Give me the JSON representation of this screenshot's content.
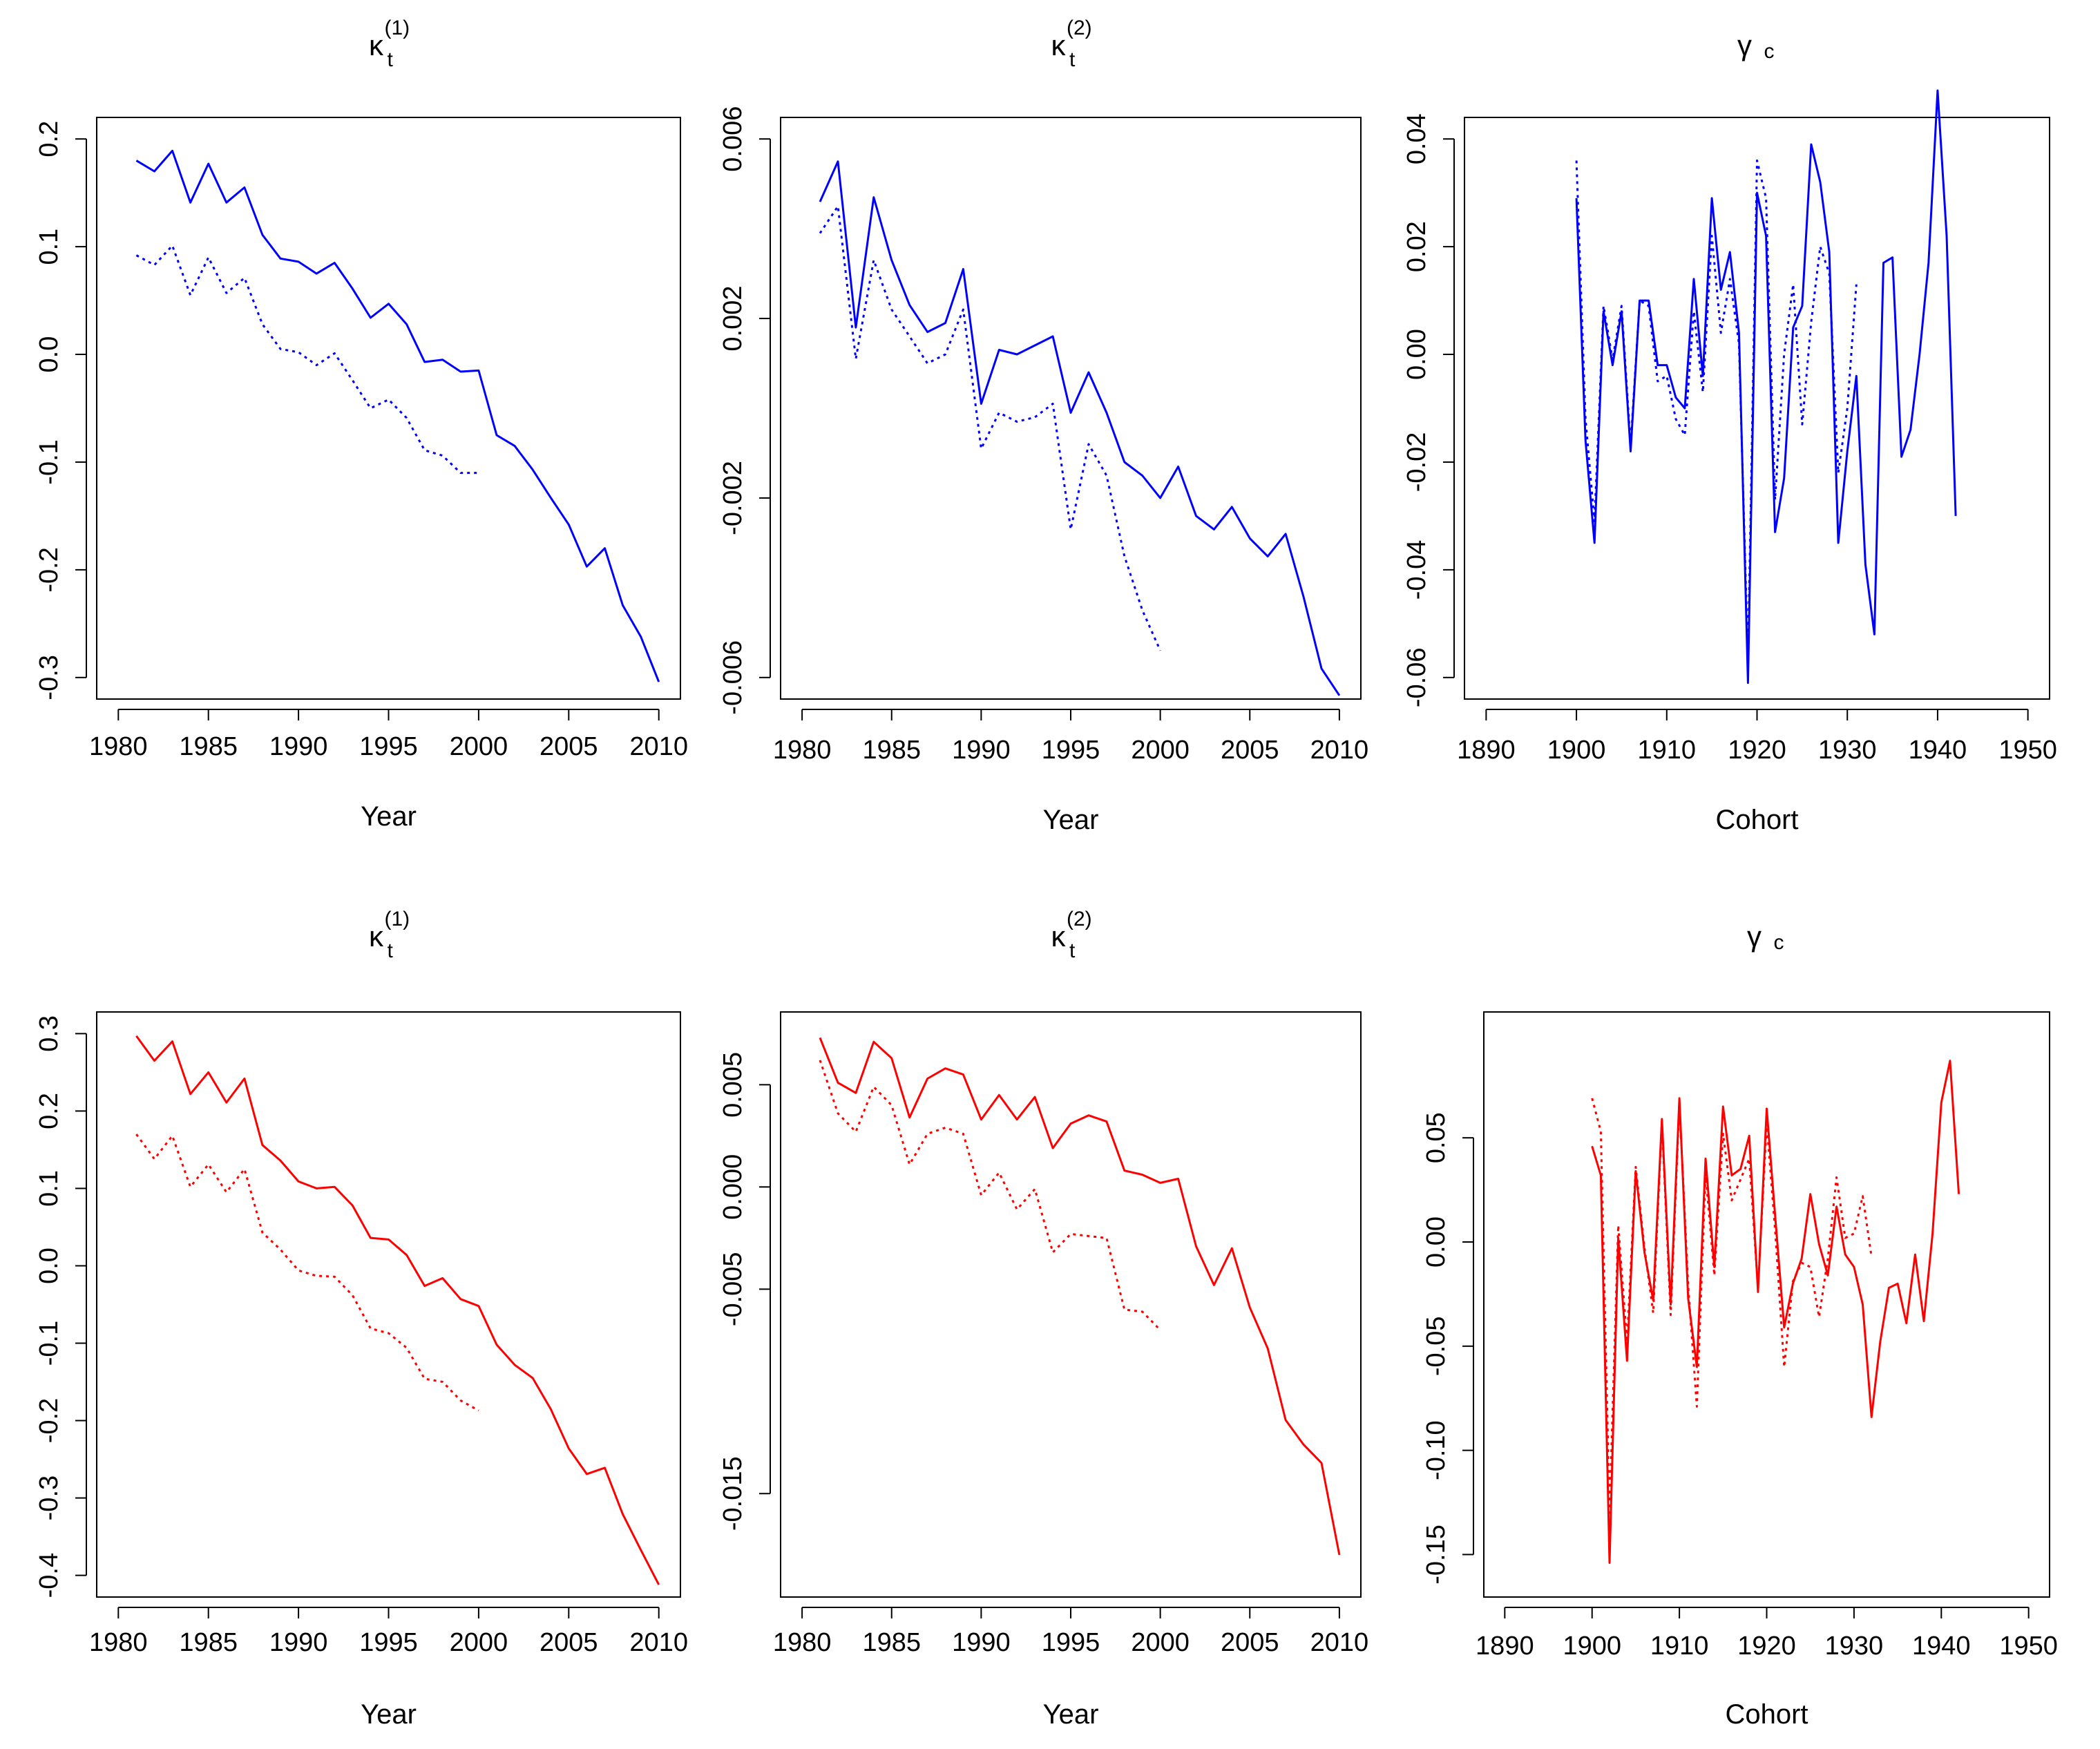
{
  "chart_data": [
    {
      "id": "top-kappa1",
      "type": "line",
      "title": {
        "base": "κ",
        "sub": "t",
        "sup": "(1)"
      },
      "xlabel": "Year",
      "xlim": [
        1980,
        2010
      ],
      "ylim": [
        -0.3,
        0.2
      ],
      "xticks": [
        "1980",
        "1985",
        "1990",
        "1995",
        "2000",
        "2005",
        "2010"
      ],
      "yticks": [
        "-0.3",
        "-0.2",
        "-0.1",
        "0.0",
        "0.1",
        "0.2"
      ],
      "color": "#0000ff",
      "series": [
        {
          "name": "solid",
          "style": "solid",
          "x_start": 1981,
          "values": [
            0.18,
            0.17,
            0.189,
            0.141,
            0.177,
            0.141,
            0.155,
            0.111,
            0.089,
            0.086,
            0.075,
            0.085,
            0.061,
            0.034,
            0.047,
            0.028,
            -0.007,
            -0.005,
            -0.016,
            -0.015,
            -0.075,
            -0.085,
            -0.107,
            -0.133,
            -0.158,
            -0.197,
            -0.18,
            -0.233,
            -0.262,
            -0.304
          ]
        },
        {
          "name": "dotted",
          "style": "dotted",
          "x_start": 1981,
          "values": [
            0.092,
            0.083,
            0.101,
            0.055,
            0.09,
            0.057,
            0.071,
            0.028,
            0.005,
            0.002,
            -0.01,
            0.001,
            -0.024,
            -0.05,
            -0.042,
            -0.059,
            -0.089,
            -0.094,
            -0.11,
            -0.11
          ]
        }
      ]
    },
    {
      "id": "top-kappa2",
      "type": "line",
      "title": {
        "base": "κ",
        "sub": "t",
        "sup": "(2)"
      },
      "xlabel": "Year",
      "xlim": [
        1980,
        2010
      ],
      "ylim": [
        -0.006,
        0.006
      ],
      "xticks": [
        "1980",
        "1985",
        "1990",
        "1995",
        "2000",
        "2005",
        "2010"
      ],
      "ytick_values": [
        -0.006,
        -0.002,
        0.002,
        0.006
      ],
      "yticks": [
        "-0.006",
        "-0.002",
        "0.002",
        "0.006"
      ],
      "color": "#0000ff",
      "series": [
        {
          "name": "solid",
          "style": "solid",
          "x_start": 1981,
          "values": [
            0.0046,
            0.0055,
            0.0018,
            0.0047,
            0.0033,
            0.0023,
            0.0017,
            0.0019,
            0.0031,
            0.0001,
            0.0013,
            0.0012,
            0.0014,
            0.0016,
            -0.0001,
            0.0008,
            -0.0001,
            -0.0012,
            -0.0015,
            -0.002,
            -0.0013,
            -0.0024,
            -0.0027,
            -0.0022,
            -0.0029,
            -0.0033,
            -0.0028,
            -0.0042,
            -0.0058,
            -0.0064
          ]
        },
        {
          "name": "dotted",
          "style": "dotted",
          "x_start": 1981,
          "values": [
            0.0039,
            0.0045,
            0.0011,
            0.0033,
            0.0022,
            0.0016,
            0.001,
            0.0012,
            0.0022,
            -0.0009,
            -0.0001,
            -0.0003,
            -0.0002,
            0.0001,
            -0.0027,
            -0.0008,
            -0.0015,
            -0.0033,
            -0.0045,
            -0.0054
          ]
        }
      ]
    },
    {
      "id": "top-gamma",
      "type": "line",
      "title": {
        "base": "γ",
        "sub": "c"
      },
      "xlabel": "Cohort",
      "xlim": [
        1890,
        1950
      ],
      "ylim": [
        -0.06,
        0.04
      ],
      "xticks": [
        "1890",
        "1900",
        "1910",
        "1920",
        "1930",
        "1940",
        "1950"
      ],
      "ytick_values": [
        -0.06,
        -0.04,
        -0.02,
        0.0,
        0.02,
        0.04
      ],
      "yticks": [
        "-0.06",
        "-0.04",
        "-0.02",
        "0.00",
        "0.02",
        "0.04"
      ],
      "color": "#0000ff",
      "series": [
        {
          "name": "solid",
          "style": "solid",
          "x_start": 1900,
          "values": [
            0.029,
            -0.016,
            -0.035,
            0.008,
            -0.002,
            0.008,
            -0.018,
            0.01,
            0.01,
            -0.002,
            -0.002,
            -0.008,
            -0.01,
            0.014,
            -0.004,
            0.029,
            0.012,
            0.019,
            0.004,
            -0.061,
            0.03,
            0.022,
            -0.033,
            -0.023,
            0.005,
            0.009,
            0.039,
            0.032,
            0.019,
            -0.035,
            -0.018,
            -0.004,
            -0.039,
            -0.052,
            0.017,
            0.018,
            -0.019,
            -0.014,
            0.0,
            0.017,
            0.049,
            0.022,
            -0.03
          ]
        },
        {
          "name": "dotted",
          "style": "dotted",
          "x_start": 1900,
          "values": [
            0.036,
            -0.012,
            -0.031,
            0.009,
            -0.001,
            0.009,
            -0.017,
            0.01,
            0.009,
            -0.005,
            -0.004,
            -0.012,
            -0.015,
            0.008,
            -0.007,
            0.022,
            0.004,
            0.014,
            0.002,
            -0.057,
            0.036,
            0.029,
            -0.027,
            0.0,
            0.013,
            -0.013,
            0.006,
            0.02,
            0.015,
            -0.022,
            -0.01,
            0.013
          ]
        }
      ]
    },
    {
      "id": "bottom-kappa1",
      "type": "line",
      "title": {
        "base": "κ",
        "sub": "t",
        "sup": "(1)"
      },
      "xlabel": "Year",
      "xlim": [
        1980,
        2010
      ],
      "ylim": [
        -0.4,
        0.3
      ],
      "xticks": [
        "1980",
        "1985",
        "1990",
        "1995",
        "2000",
        "2005",
        "2010"
      ],
      "ytick_values": [
        -0.4,
        -0.3,
        -0.2,
        -0.1,
        0.0,
        0.1,
        0.2,
        0.3
      ],
      "yticks": [
        "-0.4",
        "-0.3",
        "-0.2",
        "-0.1",
        "0.0",
        "0.1",
        "0.2",
        "0.3"
      ],
      "color": "#ff0000",
      "series": [
        {
          "name": "solid",
          "style": "solid",
          "x_start": 1981,
          "values": [
            0.297,
            0.265,
            0.29,
            0.222,
            0.25,
            0.211,
            0.242,
            0.156,
            0.136,
            0.109,
            0.1,
            0.102,
            0.078,
            0.036,
            0.034,
            0.014,
            -0.026,
            -0.016,
            -0.043,
            -0.052,
            -0.102,
            -0.128,
            -0.145,
            -0.185,
            -0.236,
            -0.269,
            -0.261,
            -0.321,
            -0.367,
            -0.412
          ]
        },
        {
          "name": "dotted",
          "style": "dotted",
          "x_start": 1981,
          "values": [
            0.17,
            0.138,
            0.168,
            0.102,
            0.131,
            0.095,
            0.125,
            0.043,
            0.021,
            -0.006,
            -0.013,
            -0.014,
            -0.038,
            -0.081,
            -0.087,
            -0.106,
            -0.146,
            -0.15,
            -0.174,
            -0.187
          ]
        }
      ]
    },
    {
      "id": "bottom-kappa2",
      "type": "line",
      "title": {
        "base": "κ",
        "sub": "t",
        "sup": "(2)"
      },
      "xlabel": "Year",
      "xlim": [
        1980,
        2010
      ],
      "ylim": [
        -0.019,
        0.0075
      ],
      "xticks": [
        "1980",
        "1985",
        "1990",
        "1995",
        "2000",
        "2005",
        "2010"
      ],
      "ytick_values": [
        -0.015,
        -0.005,
        0.0,
        0.005
      ],
      "yticks": [
        "-0.015",
        "-0.005",
        "0.000",
        "0.005"
      ],
      "color": "#ff0000",
      "series": [
        {
          "name": "solid",
          "style": "solid",
          "x_start": 1981,
          "values": [
            0.0073,
            0.0051,
            0.0046,
            0.0071,
            0.0063,
            0.0034,
            0.0053,
            0.0058,
            0.0055,
            0.0033,
            0.0045,
            0.0033,
            0.0044,
            0.0019,
            0.0031,
            0.0035,
            0.0032,
            0.0008,
            0.0006,
            0.0002,
            0.0004,
            -0.0029,
            -0.0048,
            -0.003,
            -0.0059,
            -0.0079,
            -0.0114,
            -0.0126,
            -0.0135,
            -0.018
          ]
        },
        {
          "name": "dotted",
          "style": "dotted",
          "x_start": 1981,
          "values": [
            0.0062,
            0.0036,
            0.0027,
            0.0049,
            0.004,
            0.0011,
            0.0026,
            0.0029,
            0.0026,
            -0.0004,
            0.0007,
            -0.0011,
            -0.0001,
            -0.0032,
            -0.0023,
            -0.0024,
            -0.0025,
            -0.006,
            -0.0061,
            -0.007
          ]
        }
      ]
    },
    {
      "id": "bottom-gamma",
      "type": "line",
      "title": {
        "base": "γ",
        "sub": "c"
      },
      "xlabel": "Cohort",
      "xlim": [
        1890,
        1950
      ],
      "ylim": [
        -0.16,
        0.1
      ],
      "xticks": [
        "1890",
        "1900",
        "1910",
        "1920",
        "1930",
        "1940",
        "1950"
      ],
      "ytick_values": [
        -0.15,
        -0.1,
        -0.05,
        0.0,
        0.05
      ],
      "yticks": [
        "-0.15",
        "-0.10",
        "-0.05",
        "0.00",
        "0.05"
      ],
      "color": "#ff0000",
      "series": [
        {
          "name": "solid",
          "style": "solid",
          "x_start": 1900,
          "values": [
            0.046,
            0.032,
            -0.154,
            0.002,
            -0.057,
            0.034,
            -0.005,
            -0.028,
            0.059,
            -0.03,
            0.069,
            -0.027,
            -0.06,
            0.04,
            -0.012,
            0.065,
            0.032,
            0.035,
            0.051,
            -0.024,
            0.064,
            0.011,
            -0.041,
            -0.02,
            -0.008,
            0.023,
            -0.001,
            -0.016,
            0.017,
            -0.006,
            -0.012,
            -0.03,
            -0.084,
            -0.048,
            -0.022,
            -0.02,
            -0.039,
            -0.006,
            -0.038,
            0.004,
            0.067,
            0.087,
            0.023
          ]
        },
        {
          "name": "dotted",
          "style": "dotted",
          "x_start": 1900,
          "values": [
            0.069,
            0.053,
            -0.13,
            0.008,
            -0.048,
            0.036,
            -0.003,
            -0.034,
            0.058,
            -0.035,
            0.067,
            -0.021,
            -0.079,
            0.033,
            -0.016,
            0.052,
            0.02,
            0.03,
            0.04,
            -0.022,
            0.057,
            0.004,
            -0.06,
            -0.019,
            -0.01,
            -0.012,
            -0.036,
            -0.008,
            0.031,
            0.002,
            0.004,
            0.022,
            -0.007
          ]
        }
      ]
    }
  ]
}
